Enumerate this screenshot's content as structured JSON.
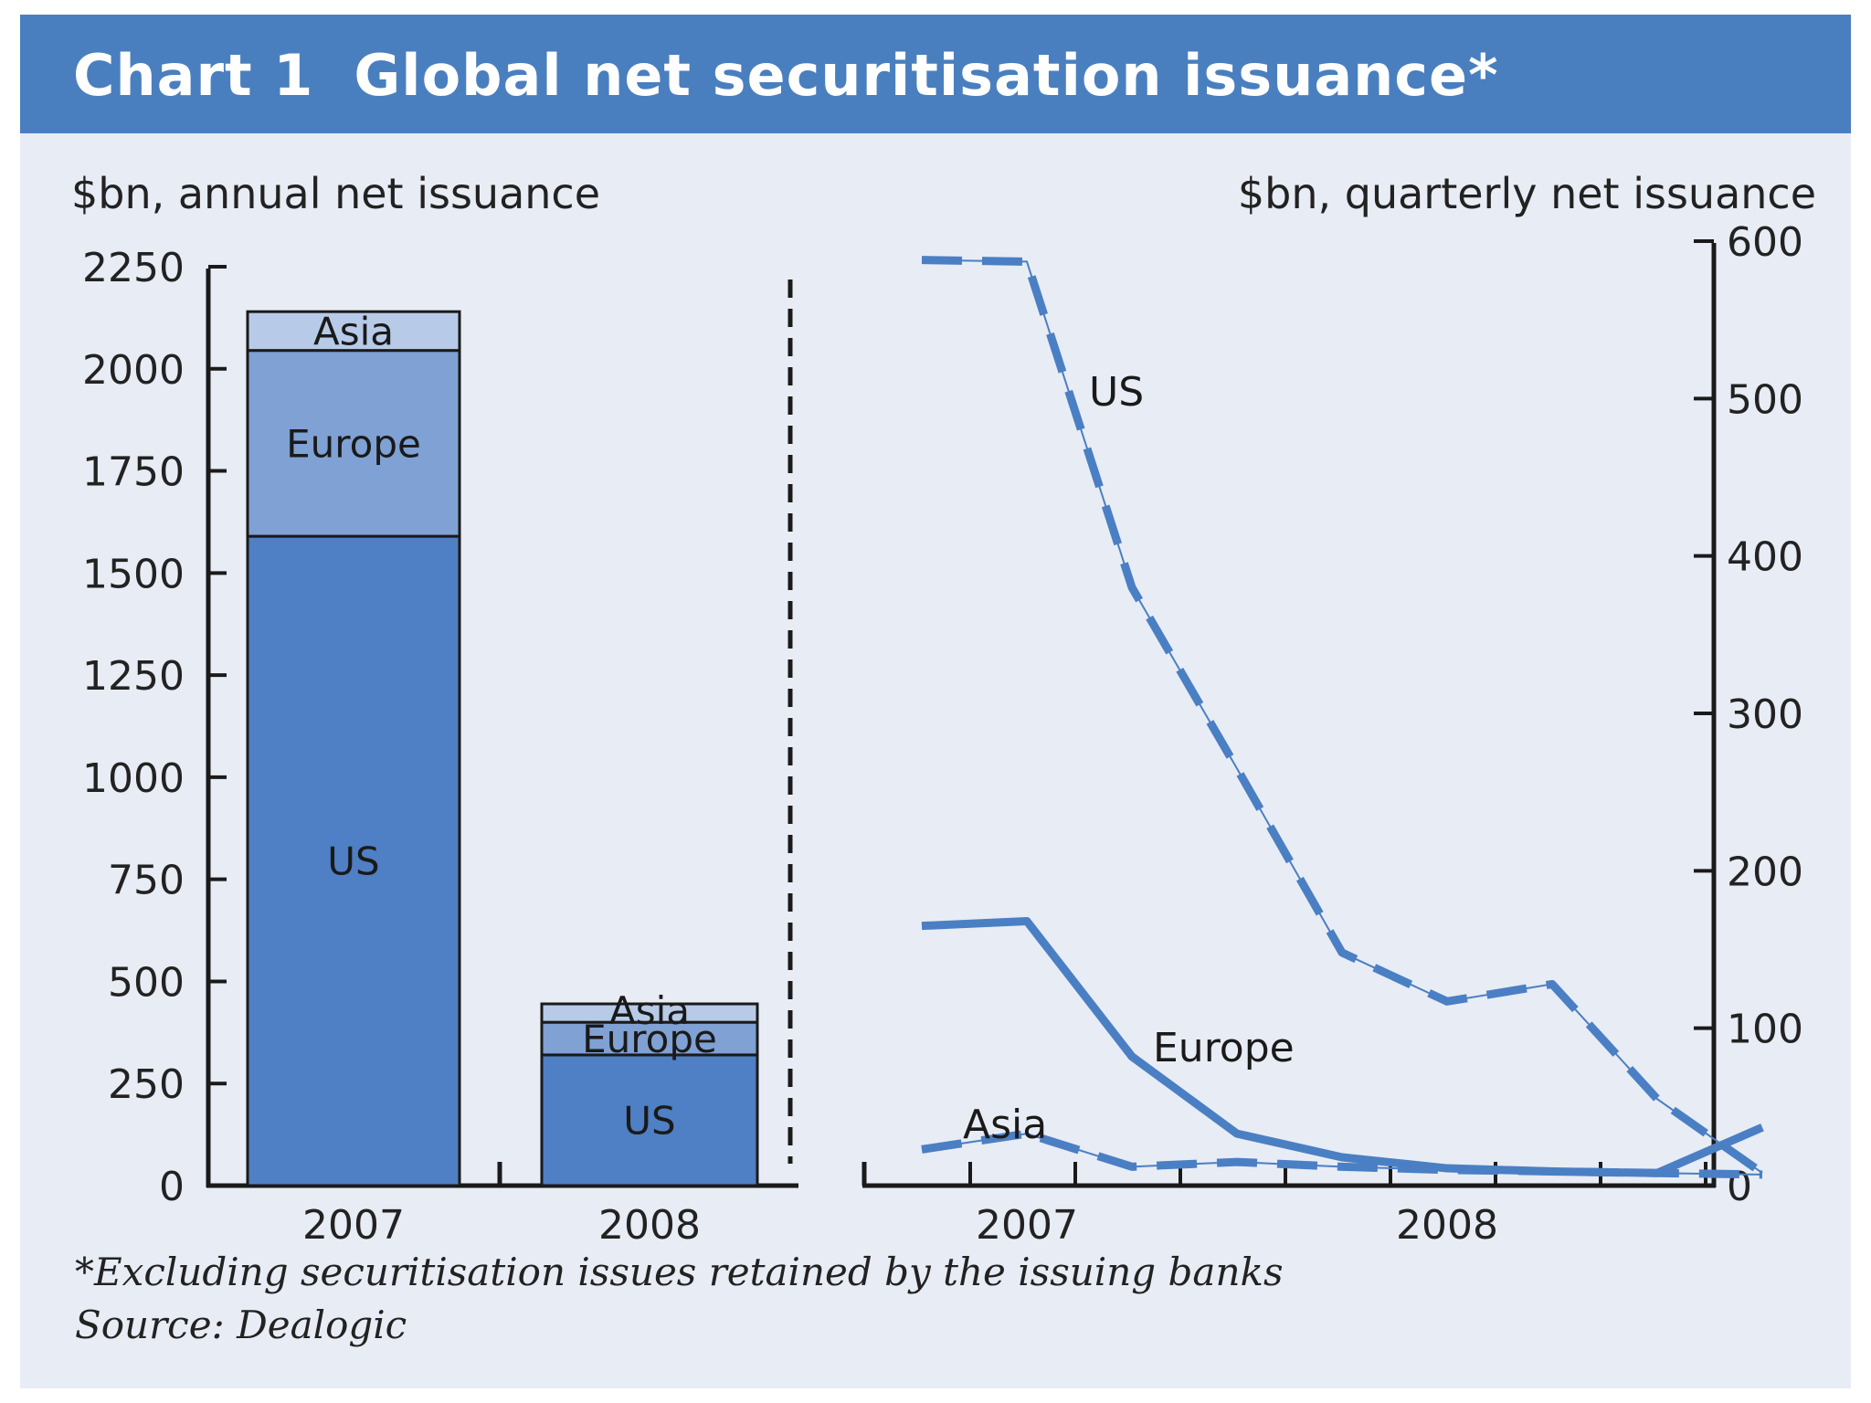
{
  "title": {
    "number": "Chart 1",
    "text": "Global net securitisation issuance*"
  },
  "colors": {
    "title_bg": "#4a7fbf",
    "panel_bg": "#e8ecf4",
    "us": "#4f7fc4",
    "europe": "#7fa1d3",
    "asia": "#b7cbe8",
    "line": "#4a7fc4"
  },
  "footnote": "*Excluding securitisation issues retained by the issuing banks",
  "source": "Source: Dealogic",
  "chart_data": [
    {
      "type": "bar",
      "stacked": true,
      "ylabel": "$bn, annual net issuance",
      "categories": [
        "2007",
        "2008"
      ],
      "ylim": [
        0,
        2250
      ],
      "yticks": [
        0,
        250,
        500,
        750,
        1000,
        1250,
        1500,
        1750,
        2000,
        2250
      ],
      "series": [
        {
          "name": "US",
          "values": [
            1590,
            320
          ]
        },
        {
          "name": "Europe",
          "values": [
            455,
            80
          ]
        },
        {
          "name": "Asia",
          "values": [
            95,
            45
          ]
        }
      ]
    },
    {
      "type": "line",
      "ylabel": "$bn, quarterly net issuance",
      "xlabels": [
        "2007",
        "2008"
      ],
      "ylim": [
        0,
        600
      ],
      "yticks": [
        0,
        100,
        200,
        300,
        400,
        500,
        600
      ],
      "series": [
        {
          "name": "US",
          "style": "dashed",
          "values": [
            588,
            587,
            380,
            265,
            148,
            117,
            128,
            55,
            8
          ]
        },
        {
          "name": "Europe",
          "style": "solid",
          "values": [
            165,
            168,
            82,
            33,
            18,
            11,
            9,
            8,
            37
          ]
        },
        {
          "name": "Asia",
          "style": "dashed",
          "values": [
            23,
            33,
            12,
            15,
            12,
            10,
            9,
            8,
            7
          ]
        }
      ]
    }
  ]
}
